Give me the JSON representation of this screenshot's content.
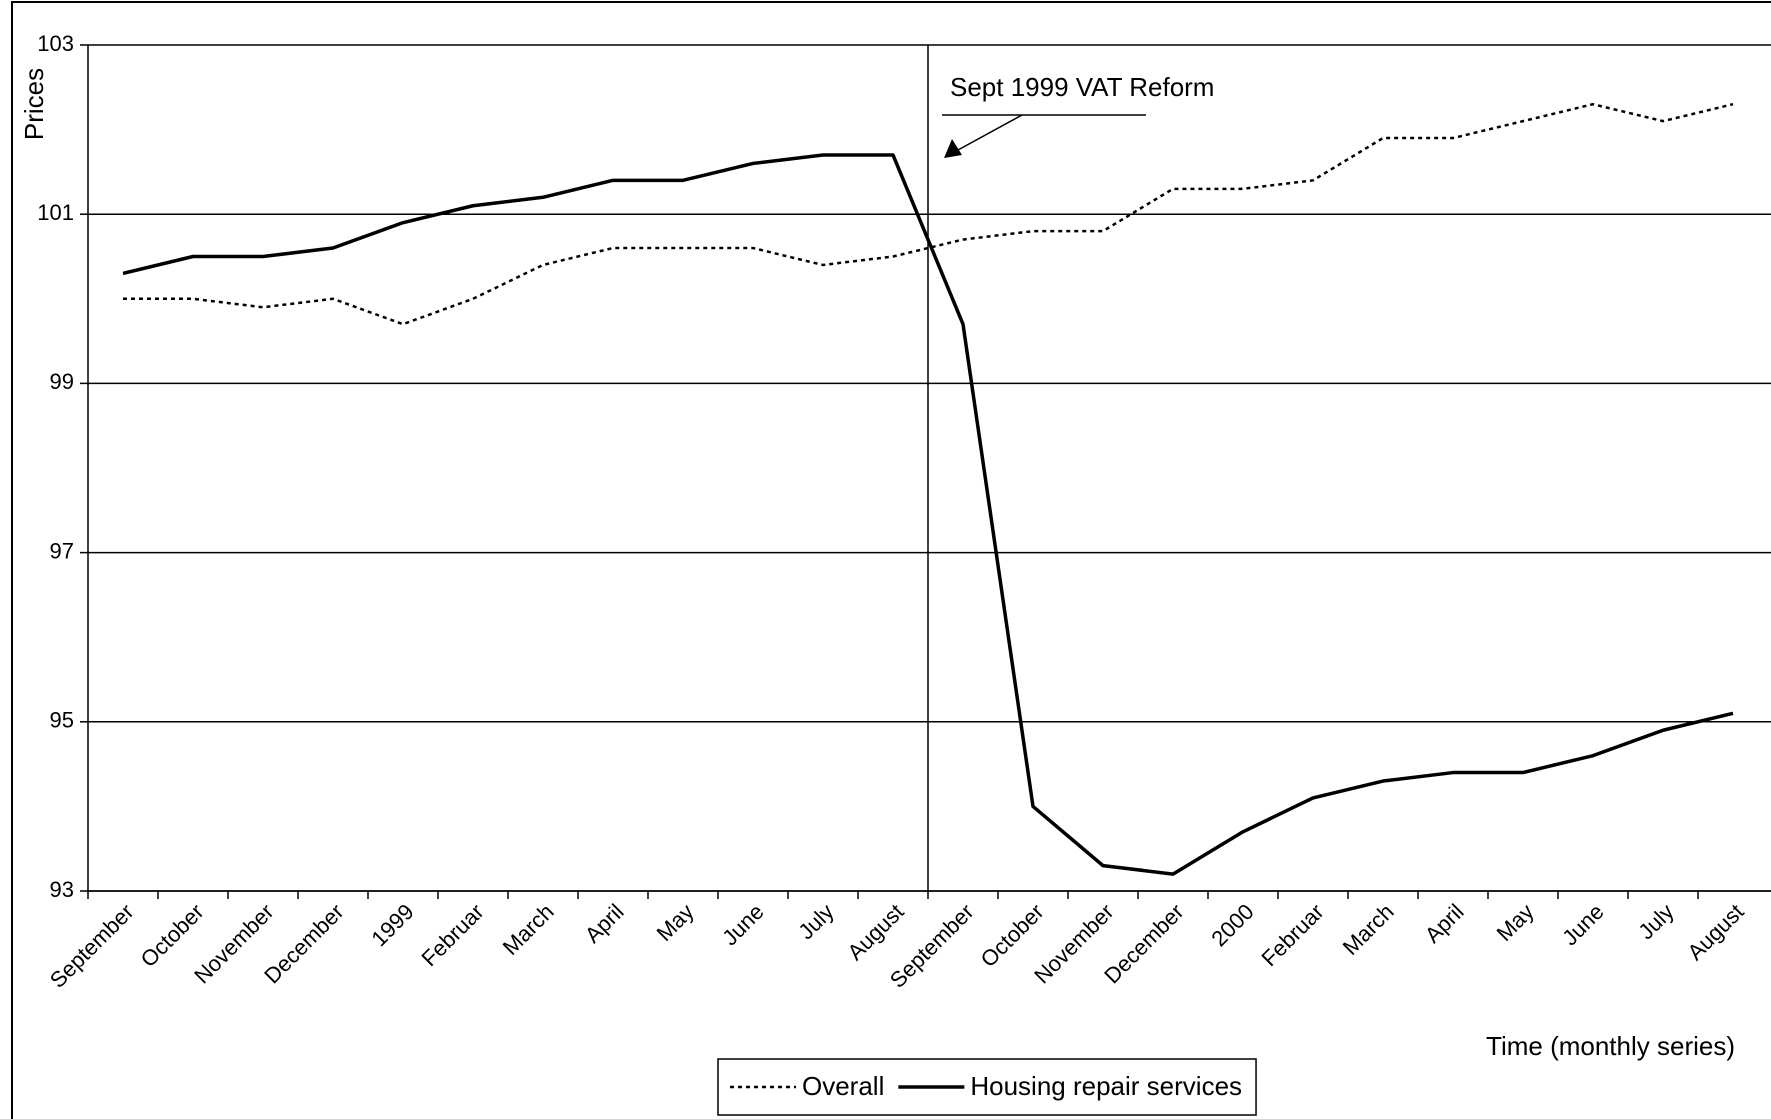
{
  "chart_data": {
    "type": "line",
    "y_label": "Prices",
    "x_label": "Time (monthly series)",
    "categories": [
      "September",
      "October",
      "November",
      "December",
      "1999",
      "Februar",
      "March",
      "April",
      "May",
      "June",
      "July",
      "August",
      "September",
      "October",
      "November",
      "December",
      "2000",
      "Februar",
      "March",
      "April",
      "May",
      "June",
      "July",
      "August"
    ],
    "series": [
      {
        "name": "Overall",
        "color": "#000000",
        "style": "dotted",
        "values": [
          100.0,
          100.0,
          99.9,
          100.0,
          99.7,
          100.0,
          100.4,
          100.6,
          100.6,
          100.6,
          100.4,
          100.5,
          100.7,
          100.8,
          100.8,
          101.3,
          101.3,
          101.4,
          101.9,
          101.9,
          102.1,
          102.3,
          102.1,
          102.3
        ]
      },
      {
        "name": "Housing repair services",
        "color": "#000000",
        "style": "solid",
        "values": [
          100.3,
          100.5,
          100.5,
          100.6,
          100.9,
          101.1,
          101.2,
          101.4,
          101.4,
          101.6,
          101.7,
          101.7,
          99.7,
          94.0,
          93.3,
          93.2,
          93.7,
          94.1,
          94.3,
          94.4,
          94.4,
          94.6,
          94.9,
          95.1
        ]
      }
    ],
    "ylim": [
      93,
      103
    ],
    "yticks": [
      93,
      95,
      97,
      99,
      101,
      103
    ],
    "grid": true,
    "annotation": {
      "text": "Sept 1999 VAT Reform",
      "x_index": 12
    },
    "legend": "bottom"
  }
}
